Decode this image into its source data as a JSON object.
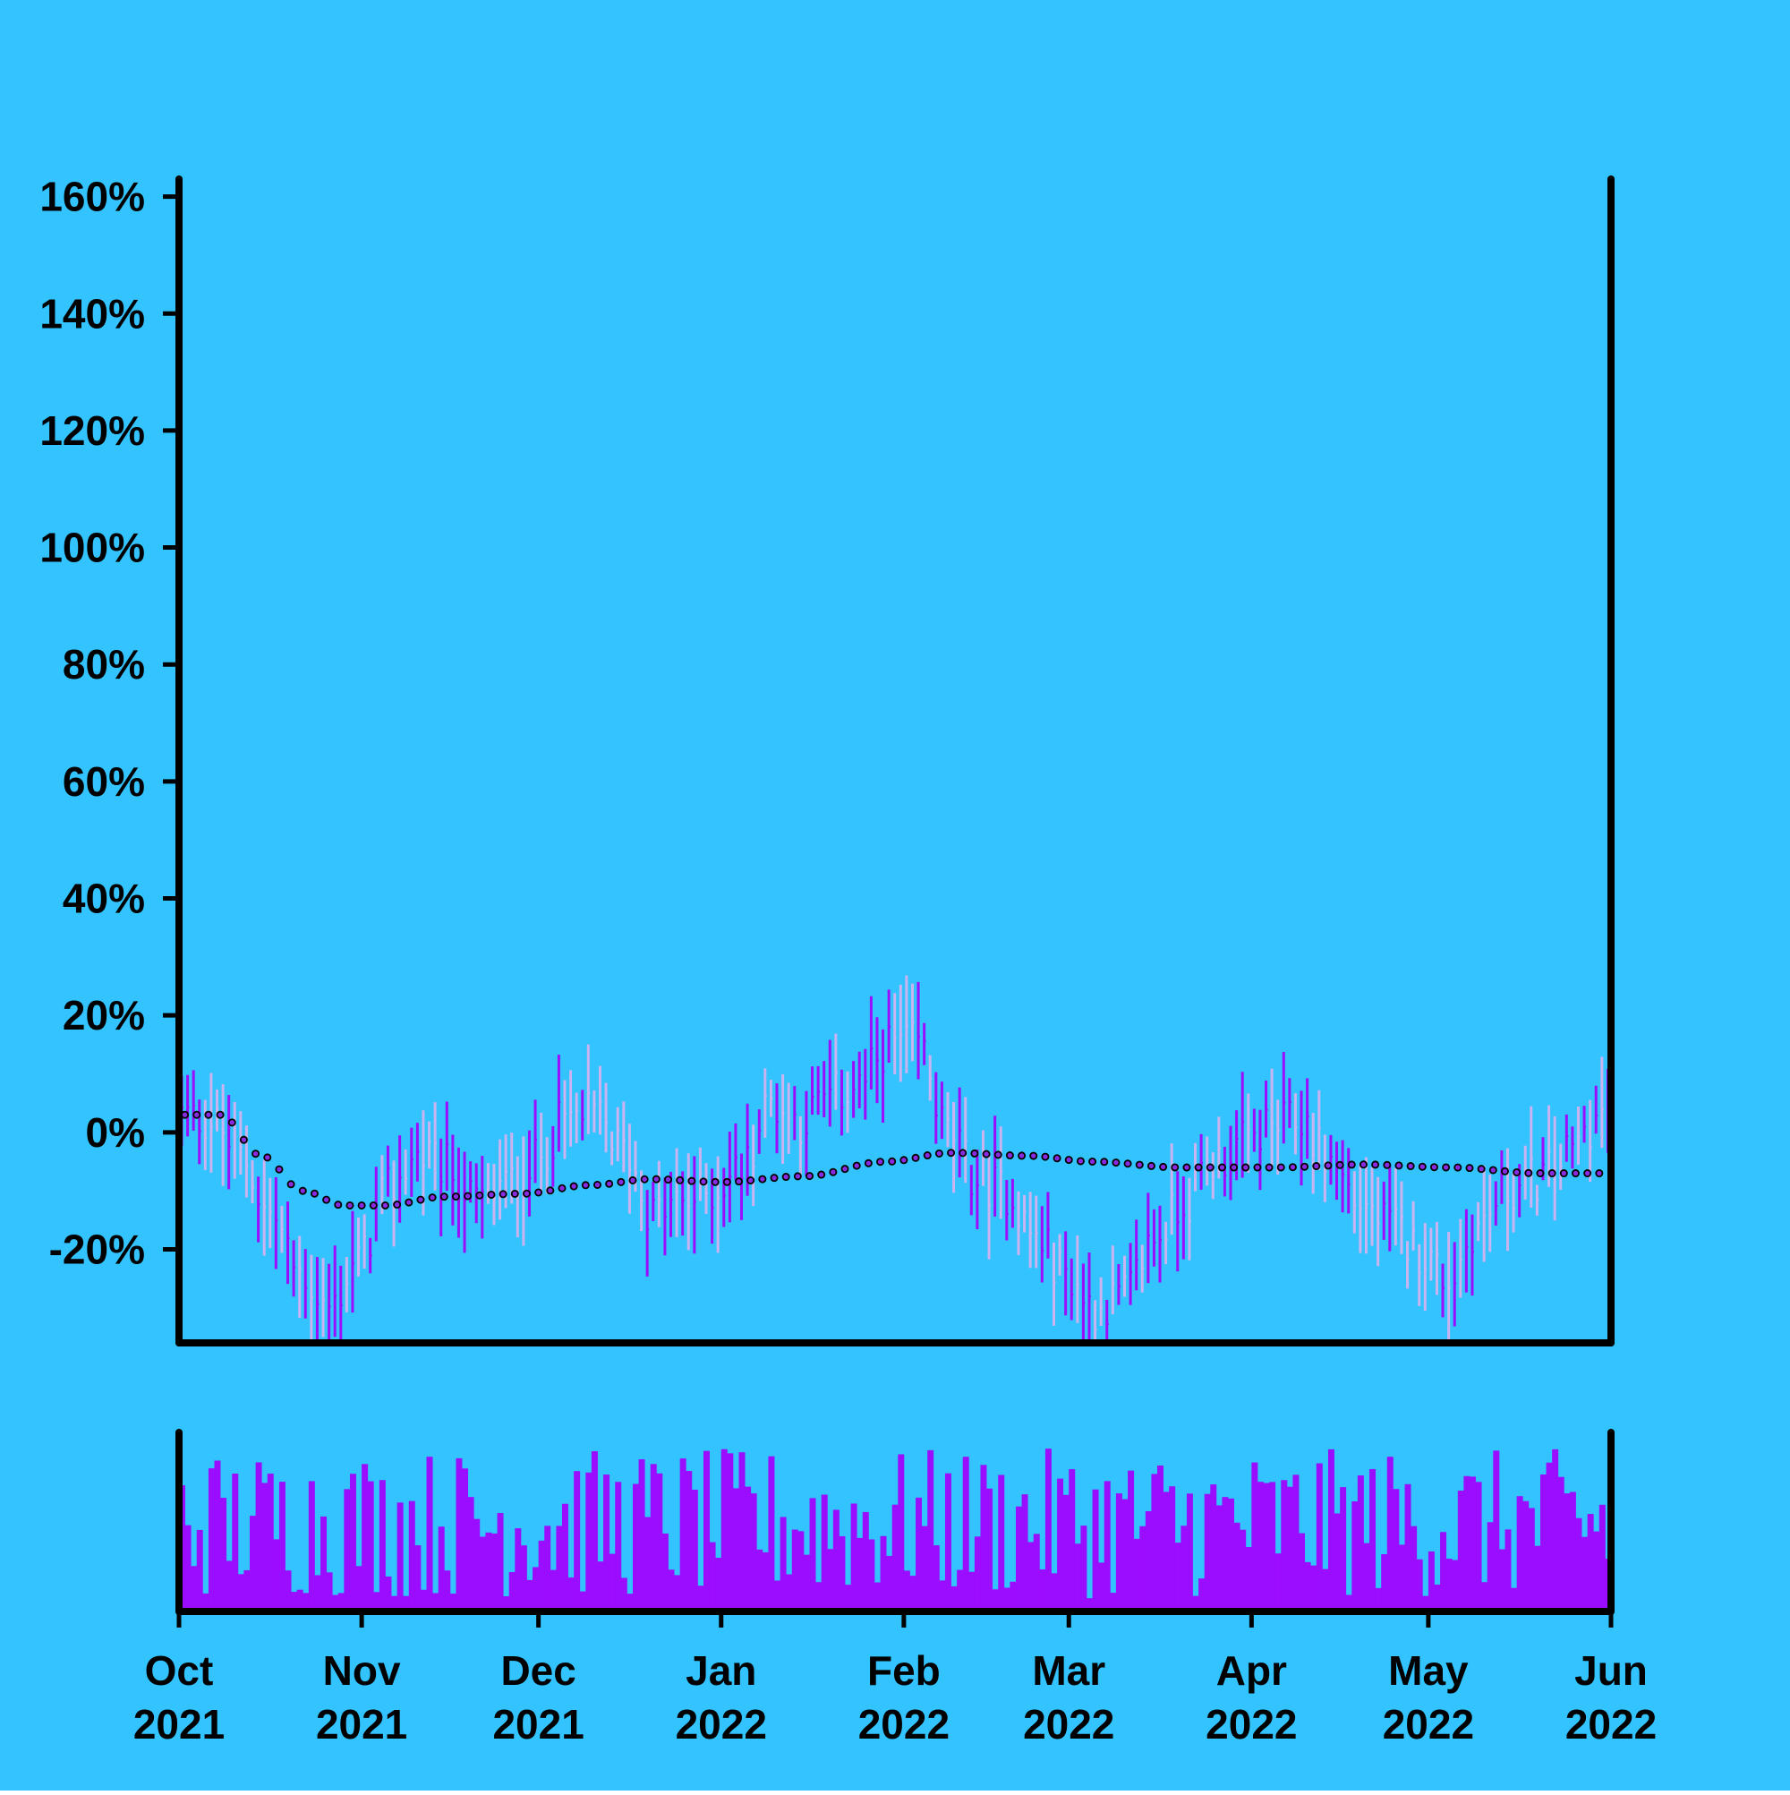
{
  "colors": {
    "background": "#33c4ff",
    "axis": "#000000",
    "bar_up": "#9b0dff",
    "bar_down": "#c9b3f0",
    "volume": "#9b0dff",
    "trend_dot_fill": "#8a2be2",
    "trend_dot_stroke": "#000000"
  },
  "chart_data": {
    "type": "line",
    "subtype": "ohlc-with-moving-average-and-volume",
    "x_range": [
      "2021-10-01",
      "2022-06-01"
    ],
    "ylim": [
      -36,
      163
    ],
    "grid": false,
    "y_ticks": [
      {
        "value": 160,
        "label": "160%"
      },
      {
        "value": 140,
        "label": "140%"
      },
      {
        "value": 120,
        "label": "120%"
      },
      {
        "value": 100,
        "label": "100%"
      },
      {
        "value": 80,
        "label": "80%"
      },
      {
        "value": 60,
        "label": "60%"
      },
      {
        "value": 40,
        "label": "40%"
      },
      {
        "value": 20,
        "label": "20%"
      },
      {
        "value": 0,
        "label": "0%"
      },
      {
        "value": -20,
        "label": "-20%"
      }
    ],
    "x_ticks": [
      {
        "date": "2021-10-01",
        "month": "Oct",
        "year": "2021"
      },
      {
        "date": "2021-11-01",
        "month": "Nov",
        "year": "2021"
      },
      {
        "date": "2021-12-01",
        "month": "Dec",
        "year": "2021"
      },
      {
        "date": "2022-01-01",
        "month": "Jan",
        "year": "2022"
      },
      {
        "date": "2022-02-01",
        "month": "Feb",
        "year": "2022"
      },
      {
        "date": "2022-03-01",
        "month": "Mar",
        "year": "2022"
      },
      {
        "date": "2022-04-01",
        "month": "Apr",
        "year": "2022"
      },
      {
        "date": "2022-05-01",
        "month": "May",
        "year": "2022"
      },
      {
        "date": "2022-06-01",
        "month": "Jun",
        "year": "2022"
      }
    ],
    "price_anchors": [
      [
        "2021-10-01",
        3
      ],
      [
        "2021-10-06",
        2
      ],
      [
        "2021-10-11",
        -4
      ],
      [
        "2021-10-16",
        -14
      ],
      [
        "2021-10-21",
        -24
      ],
      [
        "2021-10-26",
        -30
      ],
      [
        "2021-10-31",
        -22
      ],
      [
        "2021-11-05",
        -10
      ],
      [
        "2021-11-10",
        -4
      ],
      [
        "2021-11-15",
        -6
      ],
      [
        "2021-11-20",
        -12
      ],
      [
        "2021-11-25",
        -9
      ],
      [
        "2021-11-30",
        -5
      ],
      [
        "2021-12-05",
        2
      ],
      [
        "2021-12-10",
        3
      ],
      [
        "2021-12-15",
        -3
      ],
      [
        "2021-12-20",
        -14
      ],
      [
        "2021-12-25",
        -12
      ],
      [
        "2021-12-30",
        -10
      ],
      [
        "2022-01-04",
        -6
      ],
      [
        "2022-01-09",
        5
      ],
      [
        "2022-01-14",
        2
      ],
      [
        "2022-01-19",
        6
      ],
      [
        "2022-01-24",
        8
      ],
      [
        "2022-01-29",
        15
      ],
      [
        "2022-02-03",
        15
      ],
      [
        "2022-02-08",
        0
      ],
      [
        "2022-02-13",
        -8
      ],
      [
        "2022-02-18",
        -10
      ],
      [
        "2022-02-23",
        -18
      ],
      [
        "2022-02-28",
        -24
      ],
      [
        "2022-03-05",
        -30
      ],
      [
        "2022-03-10",
        -28
      ],
      [
        "2022-03-15",
        -18
      ],
      [
        "2022-03-20",
        -12
      ],
      [
        "2022-03-25",
        -5
      ],
      [
        "2022-03-30",
        -2
      ],
      [
        "2022-04-04",
        1
      ],
      [
        "2022-04-09",
        2
      ],
      [
        "2022-04-14",
        -5
      ],
      [
        "2022-04-19",
        -12
      ],
      [
        "2022-04-24",
        -16
      ],
      [
        "2022-04-29",
        -20
      ],
      [
        "2022-05-04",
        -25
      ],
      [
        "2022-05-09",
        -16
      ],
      [
        "2022-05-14",
        -10
      ],
      [
        "2022-05-19",
        -8
      ],
      [
        "2022-05-24",
        -4
      ],
      [
        "2022-05-29",
        2
      ],
      [
        "2022-06-01",
        5
      ]
    ],
    "trend_anchors": [
      [
        "2021-10-01",
        3
      ],
      [
        "2021-10-08",
        3
      ],
      [
        "2021-10-15",
        -4
      ],
      [
        "2021-10-22",
        -10
      ],
      [
        "2021-10-29",
        -12.5
      ],
      [
        "2021-11-05",
        -12.5
      ],
      [
        "2021-11-15",
        -11
      ],
      [
        "2021-11-28",
        -10.5
      ],
      [
        "2021-12-10",
        -9
      ],
      [
        "2021-12-20",
        -8
      ],
      [
        "2022-01-01",
        -8.5
      ],
      [
        "2022-01-15",
        -7.5
      ],
      [
        "2022-01-29",
        -5
      ],
      [
        "2022-02-09",
        -3.5
      ],
      [
        "2022-02-22",
        -4
      ],
      [
        "2022-03-05",
        -5
      ],
      [
        "2022-03-20",
        -6
      ],
      [
        "2022-04-05",
        -6
      ],
      [
        "2022-04-20",
        -5.5
      ],
      [
        "2022-05-05",
        -6
      ],
      [
        "2022-05-20",
        -7
      ],
      [
        "2022-06-01",
        -7
      ]
    ],
    "series_ohlc": {
      "count": 243,
      "start": "2021-10-01",
      "end": "2022-05-31",
      "range_spread": [
        4,
        14
      ]
    },
    "volume": {
      "count": 243,
      "max_relative": 1.0,
      "min_relative": 0.02
    }
  }
}
